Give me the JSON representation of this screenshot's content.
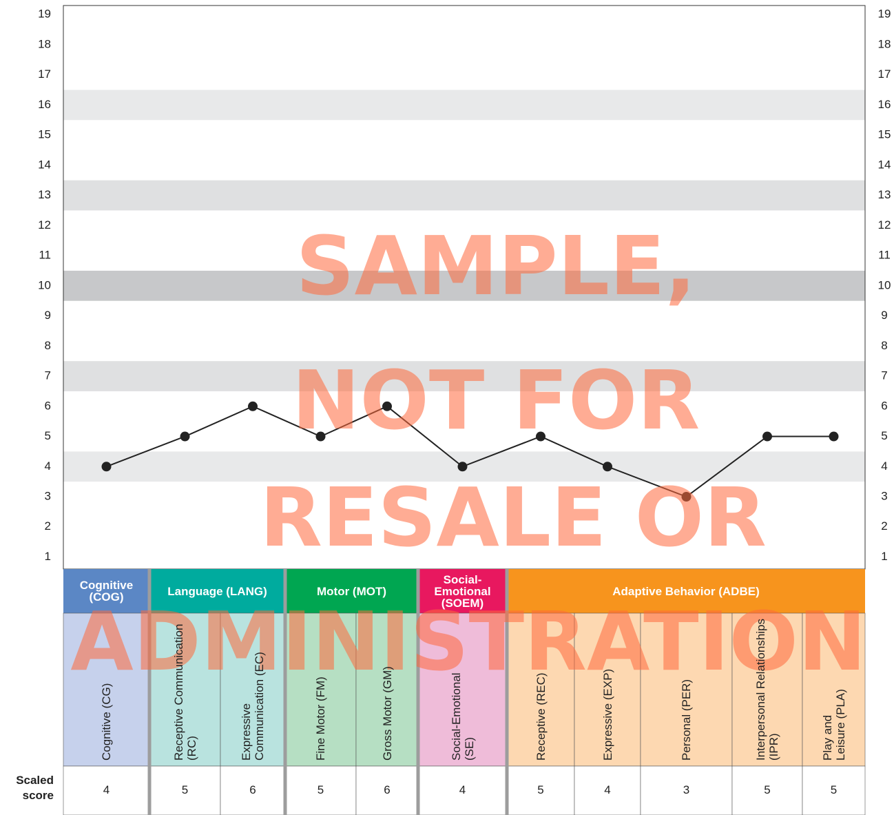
{
  "chart_data": {
    "type": "line",
    "ylim": [
      0.6,
      19.3
    ],
    "yticks": [
      1,
      2,
      3,
      4,
      5,
      6,
      7,
      8,
      9,
      10,
      11,
      12,
      13,
      14,
      15,
      16,
      17,
      18,
      19
    ],
    "bands": [
      {
        "value": 4,
        "color": "#e8e9ea"
      },
      {
        "value": 7,
        "color": "#dfe0e1"
      },
      {
        "value": 10,
        "color": "#c7c8ca"
      },
      {
        "value": 13,
        "color": "#dfe0e1"
      },
      {
        "value": 16,
        "color": "#e8e9ea"
      }
    ],
    "domains": [
      {
        "name": "Cognitive (COG)",
        "color": "#5b87c5",
        "light": "#c6d1ec",
        "count": 1
      },
      {
        "name": "Language (LANG)",
        "color": "#00ab9e",
        "light": "#b9e3df",
        "count": 2
      },
      {
        "name": "Motor (MOT)",
        "color": "#00a651",
        "light": "#b6dfc3",
        "count": 2
      },
      {
        "name": "Social-Emotional (SOEM)",
        "color": "#e8185f",
        "light": "#efbcd9",
        "count": 1
      },
      {
        "name": "Adaptive Behavior (ADBE)",
        "color": "#f7941d",
        "light": "#fdd8b1",
        "count": 5
      }
    ],
    "categories": [
      "Cognitive (CG)",
      "Receptive Communication (RC)",
      "Expressive Communication (EC)",
      "Fine Motor (FM)",
      "Gross Motor (GM)",
      "Social-Emotional (SE)",
      "Receptive (REC)",
      "Expressive (EXP)",
      "Personal (PER)",
      "Interpersonal Relationships (IPR)",
      "Play and Leisure (PLA)"
    ],
    "values": [
      4,
      5,
      6,
      5,
      6,
      4,
      5,
      4,
      3,
      5,
      5
    ],
    "color": "#222222",
    "score_label": "Scaled score",
    "watermark": [
      "SAMPLE,",
      "NOT FOR",
      "RESALE OR",
      "ADMINISTRATION"
    ]
  }
}
